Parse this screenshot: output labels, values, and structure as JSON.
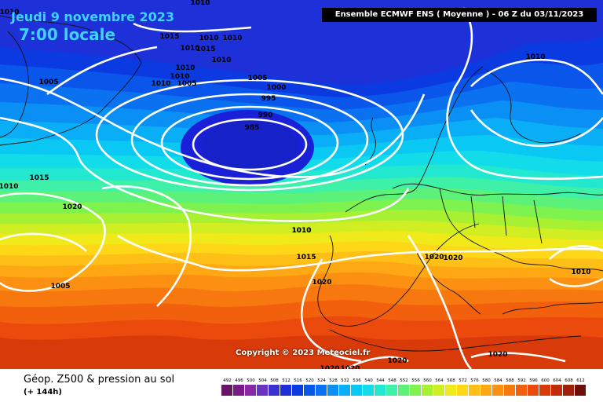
{
  "header": {
    "date": "Jeudi 9 novembre 2023",
    "time": "7:00 locale",
    "model_banner": "Ensemble ECMWF ENS  ( Moyenne )  -  06 Z du 03/11/2023"
  },
  "copyright": "Copyright © 2023 Meteociel.fr",
  "footer": {
    "title": "Géop. Z500 & pression au sol",
    "subtitle": "(+ 144h)"
  },
  "legend": {
    "values": [
      "492",
      "496",
      "500",
      "504",
      "508",
      "512",
      "516",
      "520",
      "524",
      "528",
      "532",
      "536",
      "540",
      "544",
      "548",
      "552",
      "556",
      "560",
      "564",
      "568",
      "572",
      "576",
      "580",
      "584",
      "588",
      "592",
      "596",
      "600",
      "604",
      "608",
      "612"
    ],
    "colors": [
      "#6a1468",
      "#7a1c88",
      "#8a28a8",
      "#6a32c4",
      "#3a32d0",
      "#1e30d8",
      "#0a3ae0",
      "#0a55ea",
      "#0a72f0",
      "#0a90f4",
      "#0aaef6",
      "#0ac8f4",
      "#12dcea",
      "#22e8d0",
      "#3ef0a8",
      "#5cf27a",
      "#7ef24e",
      "#a8f032",
      "#d0ee22",
      "#f0ea1a",
      "#fed818",
      "#fec016",
      "#fea814",
      "#fc9012",
      "#f87810",
      "#f2600e",
      "#ea4a0c",
      "#d83a0a",
      "#c22c0a",
      "#a01e0a",
      "#6e0e0a"
    ]
  },
  "isobars": {
    "labels": [
      "1010",
      "1010",
      "1015",
      "1010",
      "1010",
      "1010",
      "1015",
      "1010",
      "1010",
      "1010",
      "1010",
      "1005",
      "1010",
      "1005",
      "1005",
      "1000",
      "995",
      "990",
      "985",
      "1010",
      "1015",
      "1020",
      "1010",
      "1005",
      "1010",
      "1015",
      "1020",
      "1020",
      "1020",
      "1010",
      "1020",
      "1020",
      "1020",
      "1020"
    ]
  }
}
